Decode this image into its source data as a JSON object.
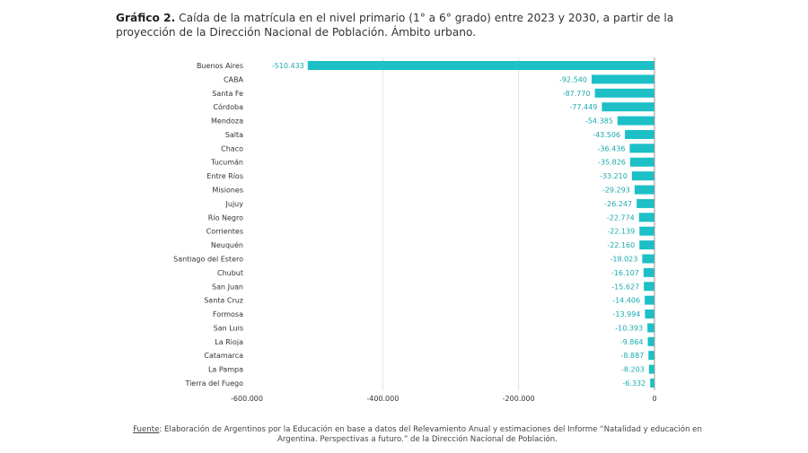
{
  "title": {
    "bold": "Gráfico 2.",
    "text": "Caída de la matrícula en el nivel primario (1° a 6° grado) entre 2023 y 2030, a partir de la proyección de la Dirección Nacional de Población. Ámbito urbano."
  },
  "source": {
    "label": "Fuente",
    "text": ": Elaboración de Argentinos por la Educación en base a datos del Relevamiento Anual y estimaciones del Informe “Natalidad y educación en Argentina. Perspectivas a futuro.” de la Dirección Nacional de Población."
  },
  "chart_data": {
    "type": "bar",
    "orientation": "horizontal",
    "categories": [
      "Buenos Aires",
      "CABA",
      "Santa Fe",
      "Córdoba",
      "Mendoza",
      "Salta",
      "Chaco",
      "Tucumán",
      "Entre Ríos",
      "Misiones",
      "Jujuy",
      "Río Negro",
      "Corrientes",
      "Neuquén",
      "Santiago del Estero",
      "Chubut",
      "San Juan",
      "Santa Cruz",
      "Formosa",
      "San Luis",
      "La Rioja",
      "Catamarca",
      "La Pampa",
      "Tierra del Fuego"
    ],
    "values": [
      -510433,
      -92540,
      -87770,
      -77449,
      -54385,
      -43506,
      -36436,
      -35826,
      -33210,
      -29293,
      -26247,
      -22774,
      -22139,
      -22160,
      -18023,
      -16107,
      -15627,
      -14406,
      -13994,
      -10393,
      -9864,
      -8887,
      -8203,
      -6332
    ],
    "data_labels": [
      "-510.433",
      "-92.540",
      "-87.770",
      "-77.449",
      "-54.385",
      "-43.506",
      "-36.436",
      "-35.826",
      "-33.210",
      "-29.293",
      "-26.247",
      "-22.774",
      "-22.139",
      "-22.160",
      "-18.023",
      "-16.107",
      "-15.627",
      "-14.406",
      "-13.994",
      "-10.393",
      "-9.864",
      "-8.887",
      "-8.203",
      "-6.332"
    ],
    "xlim": [
      -600000,
      0
    ],
    "xticks": [
      -600000,
      -400000,
      -200000,
      0
    ],
    "xtick_labels": [
      "-600.000",
      "-400.000",
      "-200.000",
      "0"
    ],
    "grid": "vertical",
    "bar_color": "#1cc0c6",
    "label_color": "#1aa9ae"
  }
}
